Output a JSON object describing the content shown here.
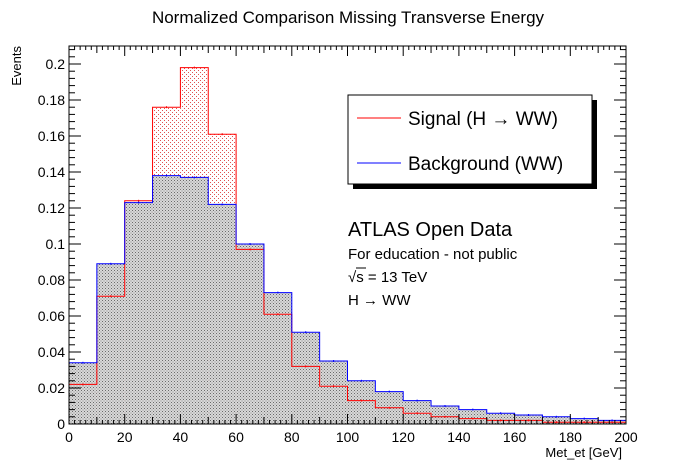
{
  "chart_data": {
    "type": "histogram",
    "title": "Normalized Comparison Missing Transverse Energy",
    "xlabel": "Met_et [GeV]",
    "ylabel": "Events",
    "xlim": [
      0,
      200
    ],
    "ylim": [
      0,
      0.21
    ],
    "x_ticks": [
      "0",
      "20",
      "40",
      "60",
      "80",
      "100",
      "120",
      "140",
      "160",
      "180",
      "200"
    ],
    "y_ticks": [
      "0",
      "0.02",
      "0.04",
      "0.06",
      "0.08",
      "0.1",
      "0.12",
      "0.14",
      "0.16",
      "0.18",
      "0.2"
    ],
    "bin_edges": [
      0,
      10,
      20,
      30,
      40,
      50,
      60,
      70,
      80,
      90,
      100,
      110,
      120,
      130,
      140,
      150,
      160,
      170,
      180,
      190,
      200
    ],
    "series": [
      {
        "name": "Signal (H  → WW)",
        "color": "#ff0000",
        "values": [
          0.022,
          0.071,
          0.124,
          0.176,
          0.198,
          0.161,
          0.097,
          0.061,
          0.032,
          0.021,
          0.013,
          0.009,
          0.006,
          0.004,
          0.003,
          0.002,
          0.002,
          0.001,
          0.001,
          0.001
        ]
      },
      {
        "name": "Background (WW)",
        "color": "#0000ff",
        "values": [
          0.034,
          0.089,
          0.123,
          0.138,
          0.137,
          0.122,
          0.1,
          0.073,
          0.051,
          0.035,
          0.024,
          0.018,
          0.013,
          0.01,
          0.008,
          0.006,
          0.005,
          0.004,
          0.003,
          0.002
        ]
      }
    ],
    "legend": {
      "entries": [
        "Signal (H  → WW)",
        "Background (WW)"
      ],
      "placement": "top-right"
    },
    "annotations": {
      "line1": "ATLAS Open Data",
      "line2": "For education - not public",
      "line3_sqrt": "√s = 13 TeV",
      "line4": "H → WW"
    },
    "grid": false
  }
}
